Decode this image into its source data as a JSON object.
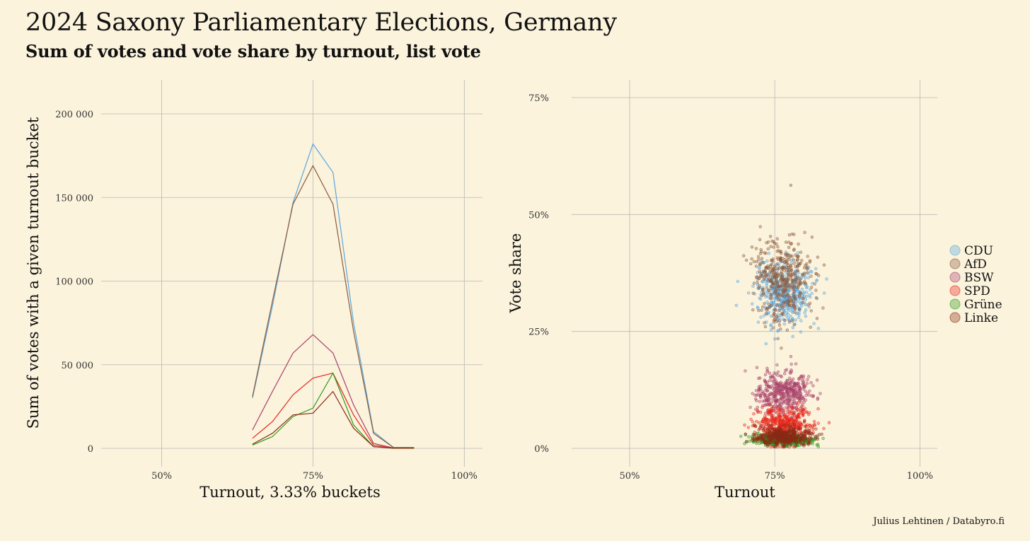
{
  "title": "2024 Saxony Parliamentary Elections, Germany",
  "subtitle": "Sum of votes and vote share by turnout, list vote",
  "caption": "Julius Lehtinen / Databyro.fi",
  "colors": {
    "background": "#fbf3dc",
    "CDU": "#5aa6df",
    "AfD": "#8b5a3c",
    "BSW": "#a8406a",
    "SPD": "#e8251b",
    "Grüne": "#2e9a1e",
    "Linke": "#8a2a16"
  },
  "chart_data": [
    {
      "type": "line",
      "xlabel": "Turnout, 3.33% buckets",
      "ylabel": "Sum of votes with a given turnout bucket",
      "xlim": [
        0.4,
        1.03
      ],
      "ylim": [
        0,
        200000
      ],
      "x_ticks": [
        0.5,
        0.75,
        1.0
      ],
      "x_tick_labels": [
        "50%",
        "75%",
        "100%"
      ],
      "y_ticks": [
        0,
        50000,
        100000,
        150000,
        200000
      ],
      "y_tick_labels": [
        "0",
        "50 000",
        "100 000",
        "150 000",
        "200 000"
      ],
      "grid": true,
      "x": [
        0.65,
        0.683,
        0.717,
        0.75,
        0.783,
        0.817,
        0.85,
        0.883,
        0.917
      ],
      "series": [
        {
          "name": "CDU",
          "values": [
            30000,
            85000,
            147000,
            182000,
            165000,
            75000,
            10000,
            500,
            500
          ]
        },
        {
          "name": "AfD",
          "values": [
            31000,
            88000,
            146000,
            169000,
            146000,
            70000,
            9000,
            500,
            500
          ]
        },
        {
          "name": "BSW",
          "values": [
            11000,
            34000,
            57000,
            68000,
            57000,
            26000,
            3000,
            200,
            200
          ]
        },
        {
          "name": "SPD",
          "values": [
            6000,
            16000,
            32000,
            42000,
            45000,
            20000,
            2000,
            100,
            100
          ]
        },
        {
          "name": "Grüne",
          "values": [
            2000,
            7000,
            19000,
            24000,
            45000,
            14000,
            1000,
            100,
            100
          ]
        },
        {
          "name": "Linke",
          "values": [
            2500,
            9000,
            20000,
            21000,
            34000,
            12000,
            1000,
            100,
            100
          ]
        }
      ]
    },
    {
      "type": "scatter",
      "xlabel": "Turnout",
      "ylabel": "Vote share",
      "xlim": [
        0.4,
        1.03
      ],
      "ylim": [
        0,
        0.75
      ],
      "x_ticks": [
        0.5,
        0.75,
        1.0
      ],
      "x_tick_labels": [
        "50%",
        "75%",
        "100%"
      ],
      "y_ticks": [
        0,
        0.25,
        0.5,
        0.75
      ],
      "y_tick_labels": [
        "0%",
        "25%",
        "50%",
        "75%"
      ],
      "grid": true,
      "legend_position": "right",
      "series": [
        {
          "name": "CDU",
          "x_center": 0.765,
          "x_spread": 0.045,
          "y_center": 0.33,
          "y_spread": 0.035,
          "n": 420
        },
        {
          "name": "AfD",
          "x_center": 0.765,
          "x_spread": 0.045,
          "y_center": 0.36,
          "y_spread": 0.045,
          "n": 420
        },
        {
          "name": "BSW",
          "x_center": 0.765,
          "x_spread": 0.045,
          "y_center": 0.12,
          "y_spread": 0.022,
          "n": 420
        },
        {
          "name": "SPD",
          "x_center": 0.765,
          "x_spread": 0.045,
          "y_center": 0.05,
          "y_spread": 0.018,
          "n": 420
        },
        {
          "name": "Grüne",
          "x_center": 0.765,
          "x_spread": 0.045,
          "y_center": 0.018,
          "y_spread": 0.006,
          "n": 420
        },
        {
          "name": "Linke",
          "x_center": 0.765,
          "x_spread": 0.045,
          "y_center": 0.025,
          "y_spread": 0.01,
          "n": 420
        }
      ]
    }
  ]
}
